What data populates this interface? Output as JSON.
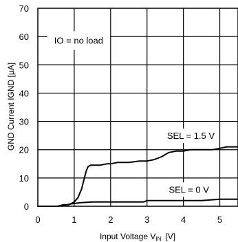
{
  "chart_data": {
    "type": "line",
    "xlabel": "Input Voltage V",
    "xlabel_sub": "IN",
    "xlabel_unit": "[V]",
    "ylabel": "GND Current IGND  [µA]",
    "xlim": [
      0,
      5.5
    ],
    "ylim": [
      0,
      70
    ],
    "x_ticks": [
      "0",
      "1",
      "2",
      "3",
      "4",
      "5"
    ],
    "y_ticks": [
      "0",
      "10",
      "20",
      "30",
      "40",
      "50",
      "60",
      "70"
    ],
    "grid": true,
    "condition_label": "IO = no load",
    "series": [
      {
        "name": "SEL = 1.5 V",
        "x": [
          0,
          0.55,
          0.7,
          0.85,
          1.0,
          1.1,
          1.2,
          1.28,
          1.33,
          1.38,
          1.45,
          1.55,
          1.7,
          1.9,
          2.0,
          2.2,
          2.5,
          2.8,
          3.0,
          3.2,
          3.4,
          3.6,
          3.8,
          4.0,
          4.2,
          4.5,
          4.8,
          5.0,
          5.2,
          5.5
        ],
        "y": [
          0,
          0,
          0.5,
          0.5,
          1.5,
          3,
          6,
          10,
          12.5,
          14,
          14.5,
          14.5,
          14.5,
          15,
          15,
          15.5,
          15.5,
          16,
          16,
          16.5,
          17.5,
          19,
          19.5,
          19.5,
          20,
          20,
          20,
          20.5,
          21,
          21
        ]
      },
      {
        "name": "SEL = 0 V",
        "x": [
          0,
          0.55,
          0.7,
          0.9,
          1.0,
          1.2,
          1.5,
          2.0,
          2.5,
          2.9,
          3.0,
          3.5,
          4.0,
          4.5,
          5.0,
          5.5
        ],
        "y": [
          0,
          0,
          0.3,
          0.8,
          1.0,
          1.3,
          1.5,
          1.5,
          1.5,
          1.5,
          2.0,
          2.0,
          2.0,
          2.0,
          2.5,
          2.5
        ]
      }
    ]
  }
}
